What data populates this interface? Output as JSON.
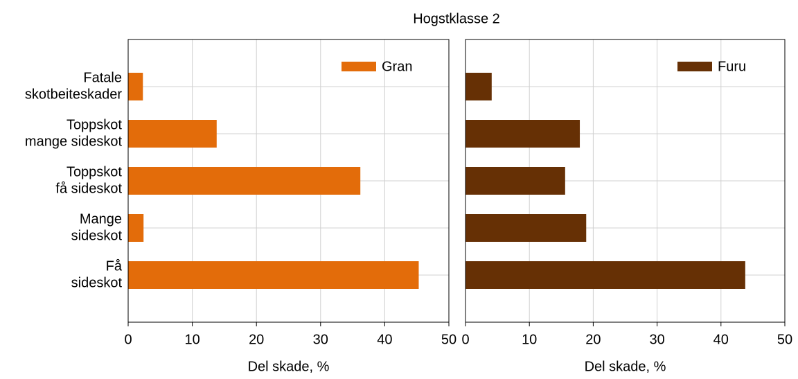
{
  "title": "Hogstklasse 2",
  "chart_data": [
    {
      "type": "barh",
      "categories": [
        [
          "Fatale",
          "skotbeiteskader"
        ],
        [
          "Toppskot",
          "mange sideskot"
        ],
        [
          "Toppskot",
          "få sideskot"
        ],
        [
          "Mange",
          "sideskot"
        ],
        [
          "Få",
          "sideskot"
        ]
      ],
      "series": [
        {
          "name": "Gran",
          "color": "#e36c0a",
          "values": [
            2.3,
            13.8,
            36.2,
            2.4,
            45.3
          ]
        }
      ],
      "xlabel": "Del skade, %",
      "xlim": [
        0,
        50
      ],
      "xticks": [
        0,
        10,
        20,
        30,
        40,
        50
      ],
      "grid": true,
      "legend": "upper right"
    },
    {
      "type": "barh",
      "series": [
        {
          "name": "Furu",
          "color": "#663005",
          "values": [
            4.1,
            17.9,
            15.6,
            18.9,
            43.8
          ]
        }
      ],
      "xlabel": "Del skade, %",
      "xlim": [
        0,
        50
      ],
      "xticks": [
        0,
        10,
        20,
        30,
        40,
        50
      ],
      "grid": true,
      "legend": "upper right"
    }
  ]
}
